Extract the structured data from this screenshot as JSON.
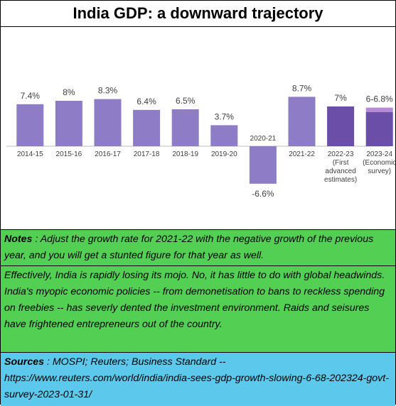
{
  "header": {
    "title": "India GDP: a downward trajectory"
  },
  "chart_data": {
    "type": "bar",
    "title": "India GDP: a downward trajectory",
    "xlabel": "",
    "ylabel": "",
    "ylim": [
      -8,
      10
    ],
    "grid": false,
    "categories": [
      [
        "2014-15"
      ],
      [
        "2015-16"
      ],
      [
        "2016-17"
      ],
      [
        "2017-18"
      ],
      [
        "2018-19"
      ],
      [
        "2019-20"
      ],
      [
        "2020-21"
      ],
      [
        "2021-22"
      ],
      [
        "2022-23",
        "(First",
        "advanced",
        "estimates)"
      ],
      [
        "2023-24",
        "(Economic",
        "survey)"
      ]
    ],
    "values": [
      7.4,
      8,
      8.3,
      6.4,
      6.5,
      3.7,
      -6.6,
      8.7,
      7,
      6.0
    ],
    "range_high": [
      null,
      null,
      null,
      null,
      null,
      null,
      null,
      null,
      null,
      6.8
    ],
    "data_labels": [
      "7.4%",
      "8%",
      "8.3%",
      "6.4%",
      "6.5%",
      "3.7%",
      "-6.6%",
      "8.7%",
      "7%",
      "6-6.8%"
    ],
    "colors": [
      "#8e7dc6",
      "#8e7dc6",
      "#8e7dc6",
      "#8e7dc6",
      "#8e7dc6",
      "#8e7dc6",
      "#8e7dc6",
      "#8e7dc6",
      "#6a4ea8",
      "#6a4ea8"
    ],
    "range_color": "#b58bd6"
  },
  "notes": {
    "label": "Notes",
    "text": " : Adjust the growth rate for 2021-22 with the negative growth of the previous year, and you will get a stunted figure for that year as well."
  },
  "commentary": {
    "text": "Effectively, India is rapidly losing its mojo.  No, it has little to do with global headwinds.  India's myopic economic policies -- from demonetisation to bans to reckless spending on freebies -- has severly dented the investment environment.  Raids and seisures have frightened entrepreneurs out of the country."
  },
  "sources": {
    "label": "Sources",
    "text": " : MOSPI; Reuters; Business Standard -- https://www.reuters.com/world/india/india-sees-gdp-growth-slowing-6-68-202324-govt-survey-2023-01-31/"
  },
  "colors": {
    "notes_bg": "#53d053",
    "sources_bg": "#5bc8ec",
    "bar": "#8e7dc6",
    "bar_dark": "#6a4ea8"
  }
}
